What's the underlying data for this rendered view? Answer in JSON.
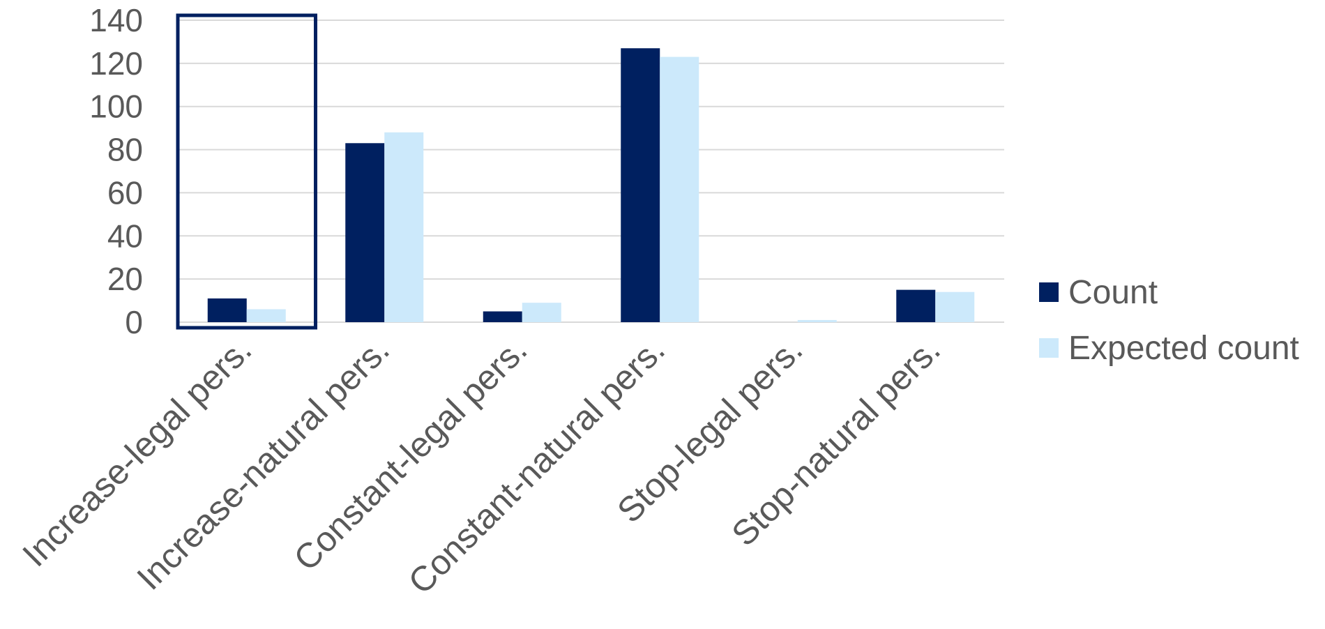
{
  "chart_data": {
    "type": "bar",
    "categories": [
      "Increase-legal pers.",
      "Increase-natural pers.",
      "Constant-legal pers.",
      "Constant-natural pers.",
      "Stop-legal pers.",
      "Stop-natural pers."
    ],
    "series": [
      {
        "name": "Count",
        "values": [
          11,
          83,
          5,
          127,
          0,
          15
        ],
        "color": "#002060"
      },
      {
        "name": "Expected count",
        "values": [
          6,
          88,
          9,
          123,
          1,
          14
        ],
        "color": "#CCE9FB"
      }
    ],
    "ylim": [
      0,
      140
    ],
    "yticks": [
      0,
      20,
      40,
      60,
      80,
      100,
      120,
      140
    ],
    "xlabel": "",
    "ylabel": "",
    "title": "",
    "grid": true,
    "legend_position": "right",
    "highlight": {
      "category_index": 0,
      "color": "#002060"
    },
    "colors": {
      "gridline": "#D9D9D9",
      "axis": "#D9D9D9",
      "text": "#595959"
    }
  }
}
